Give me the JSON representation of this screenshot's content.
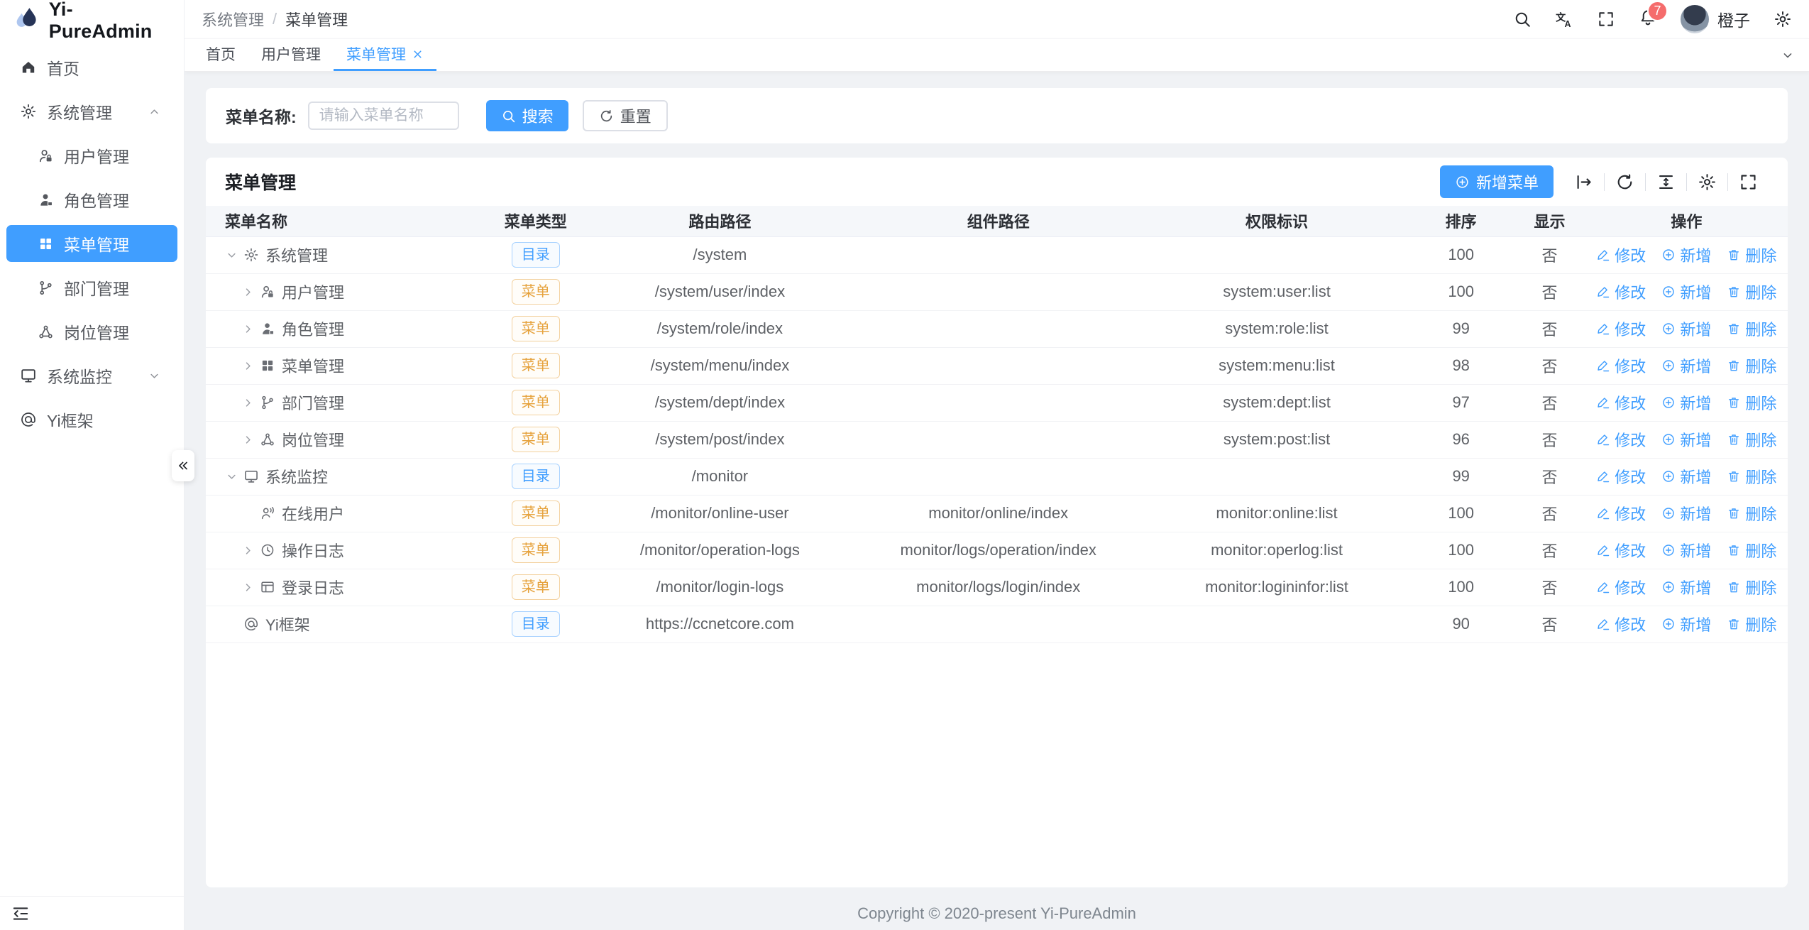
{
  "app": {
    "logo_text": "Yi-PureAdmin"
  },
  "sidebar": {
    "items": [
      {
        "icon": "home",
        "label": "首页",
        "level": 0
      },
      {
        "icon": "gear",
        "label": "系统管理",
        "level": 0,
        "arrow": "up"
      },
      {
        "icon": "user-lock",
        "label": "用户管理",
        "level": 1
      },
      {
        "icon": "user-badge",
        "label": "角色管理",
        "level": 1
      },
      {
        "icon": "grid",
        "label": "菜单管理",
        "level": 1,
        "active": true
      },
      {
        "icon": "branch",
        "label": "部门管理",
        "level": 1
      },
      {
        "icon": "network",
        "label": "岗位管理",
        "level": 1
      },
      {
        "icon": "monitor",
        "label": "系统监控",
        "level": 0,
        "arrow": "down"
      },
      {
        "icon": "at",
        "label": "Yi框架",
        "level": 0
      }
    ]
  },
  "header": {
    "breadcrumb": {
      "parent": "系统管理",
      "separator": "/",
      "current": "菜单管理"
    },
    "notification_count": "7",
    "user_name": "橙子"
  },
  "tabs": [
    {
      "label": "首页"
    },
    {
      "label": "用户管理"
    },
    {
      "label": "菜单管理",
      "active": true,
      "closable": true
    }
  ],
  "search": {
    "label": "菜单名称:",
    "placeholder": "请输入菜单名称",
    "value": "",
    "search_button": "搜索",
    "reset_button": "重置"
  },
  "card": {
    "title": "菜单管理",
    "add_button": "新增菜单",
    "toolbar_icons": [
      "collapse-right",
      "refresh",
      "density",
      "gear",
      "fullscreen"
    ]
  },
  "table": {
    "columns": [
      "菜单名称",
      "菜单类型",
      "路由路径",
      "组件路径",
      "权限标识",
      "排序",
      "显示",
      "操作"
    ],
    "ops": {
      "edit": "修改",
      "add": "新增",
      "delete": "删除"
    },
    "rows": [
      {
        "level": 0,
        "arrow": "down",
        "icon": "gear",
        "name": "系统管理",
        "type": "目录",
        "type_style": "dir",
        "route": "/system",
        "component": "",
        "perm": "",
        "sort": "100",
        "visible": "否"
      },
      {
        "level": 1,
        "arrow": "right",
        "icon": "user-lock",
        "name": "用户管理",
        "type": "菜单",
        "type_style": "menu",
        "route": "/system/user/index",
        "component": "",
        "perm": "system:user:list",
        "sort": "100",
        "visible": "否"
      },
      {
        "level": 1,
        "arrow": "right",
        "icon": "user-badge",
        "name": "角色管理",
        "type": "菜单",
        "type_style": "menu",
        "route": "/system/role/index",
        "component": "",
        "perm": "system:role:list",
        "sort": "99",
        "visible": "否"
      },
      {
        "level": 1,
        "arrow": "right",
        "icon": "grid",
        "name": "菜单管理",
        "type": "菜单",
        "type_style": "menu",
        "route": "/system/menu/index",
        "component": "",
        "perm": "system:menu:list",
        "sort": "98",
        "visible": "否"
      },
      {
        "level": 1,
        "arrow": "right",
        "icon": "branch",
        "name": "部门管理",
        "type": "菜单",
        "type_style": "menu",
        "route": "/system/dept/index",
        "component": "",
        "perm": "system:dept:list",
        "sort": "97",
        "visible": "否"
      },
      {
        "level": 1,
        "arrow": "right",
        "icon": "network",
        "name": "岗位管理",
        "type": "菜单",
        "type_style": "menu",
        "route": "/system/post/index",
        "component": "",
        "perm": "system:post:list",
        "sort": "96",
        "visible": "否"
      },
      {
        "level": 0,
        "arrow": "down",
        "icon": "monitor",
        "name": "系统监控",
        "type": "目录",
        "type_style": "dir",
        "route": "/monitor",
        "component": "",
        "perm": "",
        "sort": "99",
        "visible": "否"
      },
      {
        "level": 1,
        "arrow": "none",
        "icon": "online",
        "name": "在线用户",
        "type": "菜单",
        "type_style": "menu",
        "route": "/monitor/online-user",
        "component": "monitor/online/index",
        "perm": "monitor:online:list",
        "sort": "100",
        "visible": "否"
      },
      {
        "level": 1,
        "arrow": "right",
        "icon": "clock",
        "name": "操作日志",
        "type": "菜单",
        "type_style": "menu",
        "route": "/monitor/operation-logs",
        "component": "monitor/logs/operation/index",
        "perm": "monitor:operlog:list",
        "sort": "100",
        "visible": "否"
      },
      {
        "level": 1,
        "arrow": "right",
        "icon": "window",
        "name": "登录日志",
        "type": "菜单",
        "type_style": "menu",
        "route": "/monitor/login-logs",
        "component": "monitor/logs/login/index",
        "perm": "monitor:logininfor:list",
        "sort": "100",
        "visible": "否"
      },
      {
        "level": 0,
        "arrow": "none",
        "icon": "at",
        "name": "Yi框架",
        "type": "目录",
        "type_style": "dir",
        "route": "https://ccnetcore.com",
        "component": "",
        "perm": "",
        "sort": "90",
        "visible": "否"
      }
    ]
  },
  "footer": {
    "copyright": "Copyright © 2020-present Yi-PureAdmin"
  },
  "colors": {
    "primary": "#409eff",
    "badge_dir": "#409eff",
    "badge_menu": "#e6a23c",
    "danger": "#f56c6c"
  }
}
